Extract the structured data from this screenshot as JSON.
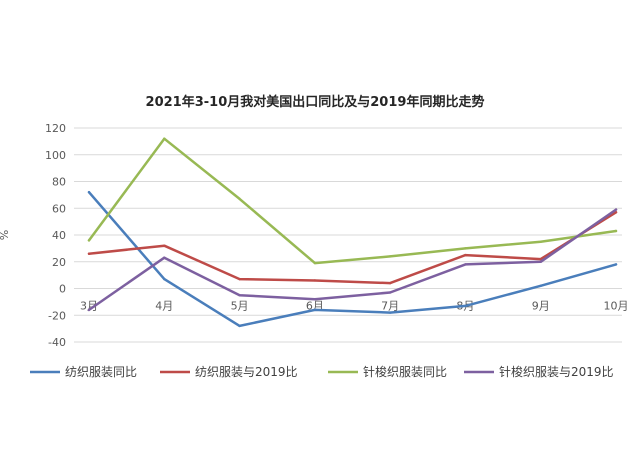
{
  "chart_data": {
    "type": "line",
    "title": "2021年3-10月我对美国出口同比及与2019年同期比走势",
    "xlabel": "",
    "ylabel": "%",
    "categories": [
      "3月",
      "4月",
      "5月",
      "6月",
      "7月",
      "8月",
      "9月",
      "10月"
    ],
    "ylim": [
      -40,
      120
    ],
    "yticks": [
      "120",
      "100",
      "80",
      "60",
      "40",
      "20",
      "0",
      "-20",
      "-40"
    ],
    "grid": true,
    "legend_position": "bottom",
    "series": [
      {
        "name": "纺织服装同比",
        "color": "#4a7ebb",
        "values": [
          72,
          7,
          -28,
          -16,
          -18,
          -13,
          2,
          18
        ]
      },
      {
        "name": "纺织服装与2019比",
        "color": "#be4b48",
        "values": [
          26,
          32,
          7,
          6,
          4,
          25,
          22,
          57
        ]
      },
      {
        "name": "针梭织服装同比",
        "color": "#98b954",
        "values": [
          36,
          112,
          67,
          19,
          24,
          30,
          35,
          43
        ]
      },
      {
        "name": "针梭织服装与2019比",
        "color": "#7d60a0",
        "values": [
          -16,
          23,
          -5,
          -8,
          -3,
          18,
          20,
          59
        ]
      }
    ]
  }
}
